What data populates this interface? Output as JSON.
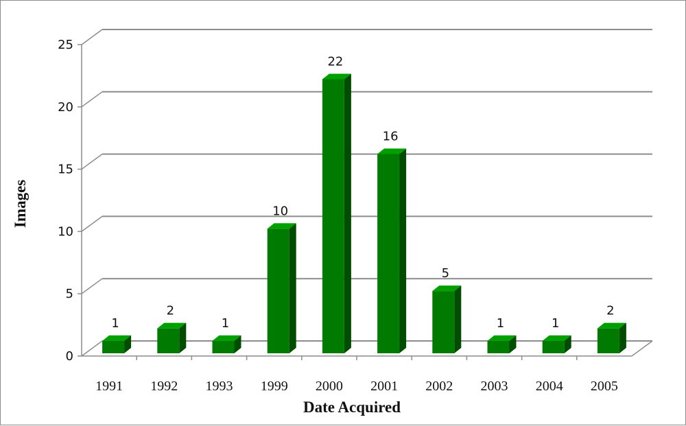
{
  "chart_data": {
    "type": "bar",
    "title": "",
    "xlabel": "Date Acquired",
    "ylabel": "Images",
    "categories": [
      "1991",
      "1992",
      "1993",
      "1999",
      "2000",
      "2001",
      "2002",
      "2003",
      "2004",
      "2005"
    ],
    "values": [
      1,
      2,
      1,
      10,
      22,
      16,
      5,
      1,
      1,
      2
    ],
    "ylim": [
      0,
      25
    ],
    "yticks": [
      "0",
      "5",
      "10",
      "15",
      "20",
      "25"
    ],
    "grid": true,
    "legend": "none",
    "data_labels": true,
    "style": "3d-column",
    "colors": {
      "bar_front": "#007a00",
      "bar_side": "#004d00",
      "bar_top": "#00a000",
      "grid": "#8c8c8c"
    }
  }
}
